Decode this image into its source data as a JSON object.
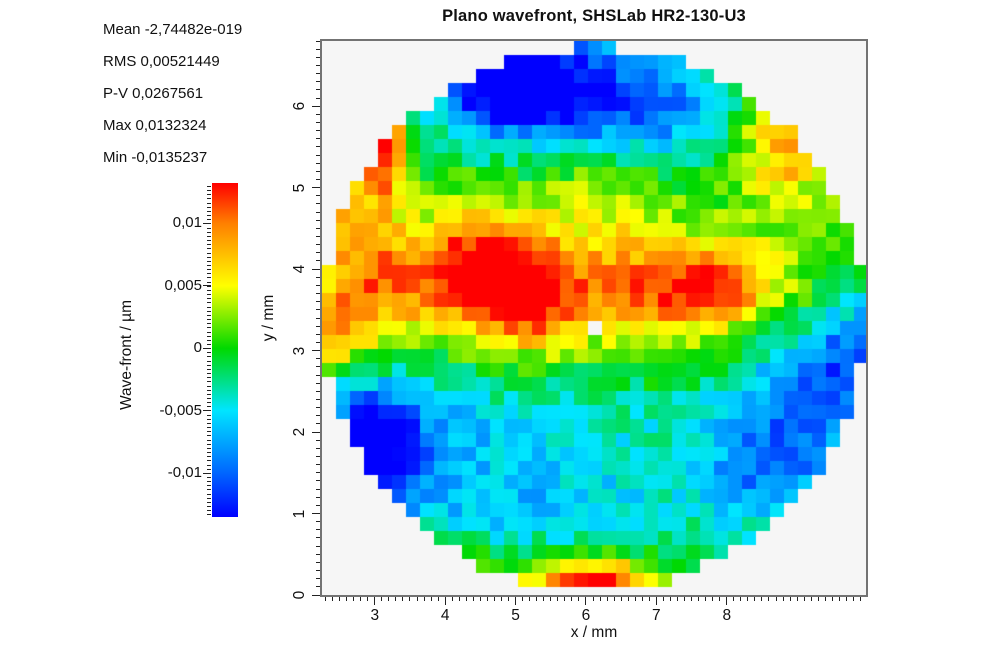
{
  "title": "Plano wavefront, SHSLab HR2-130-U3",
  "stats_panel": {
    "lines": [
      "Mean -2,74482e-019",
      "RMS 0,00521449",
      "P-V 0,0267561",
      "Max 0,0132324",
      "Min -0,0135237"
    ]
  },
  "chart_data": {
    "type": "heatmap",
    "title": "Plano wavefront, SHSLab HR2-130-U3",
    "xlabel": "x / mm",
    "ylabel": "y / mm",
    "x_range": [
      2.25,
      9.978
    ],
    "y_range": [
      0,
      6.8
    ],
    "x_tick_values": [
      3,
      4,
      5,
      6,
      7,
      8
    ],
    "x_tick_labels": [
      "3",
      "4",
      "5",
      "6",
      "7",
      "8"
    ],
    "y_tick_values": [
      0,
      1,
      2,
      3,
      4,
      5,
      6
    ],
    "y_tick_labels": [
      "0",
      "1",
      "2",
      "3",
      "4",
      "5",
      "6"
    ],
    "x_minor_step": 0.1,
    "y_minor_step": 0.1,
    "grid_on": false,
    "value_unit": "µm",
    "value_range": [
      -0.0135237,
      0.0132324
    ],
    "stats": {
      "mean": "-2,74482e-019",
      "rms": "0,00521449",
      "pv": "0,0267561",
      "max": "0,0132324",
      "min": "-0,0135237"
    },
    "colorbar": {
      "label": "Wave-front / µm",
      "tick_labels": [
        "0,01",
        "0,005",
        "0",
        "-0,005",
        "-0,01"
      ],
      "tick_values": [
        0.01,
        0.005,
        0,
        -0.005,
        -0.01
      ],
      "minor_step": 0.000333,
      "position": "left-of-plot"
    },
    "colormap_stops": [
      [
        -0.0135237,
        "#0000ff"
      ],
      [
        -0.01,
        "#0066ff"
      ],
      [
        -0.005,
        "#00e5ff"
      ],
      [
        0.0,
        "#00d900"
      ],
      [
        0.005,
        "#ffff00"
      ],
      [
        0.01,
        "#ff8000"
      ],
      [
        0.0132324,
        "#ff0000"
      ]
    ],
    "aperture": {
      "center_mm": [
        6.115,
        3.39
      ],
      "radius_x_mm": 3.86,
      "radius_y_mm": 3.33
    },
    "cell_size_mm": [
      0.199,
      0.172
    ],
    "missing_cells": [
      [
        19,
        20
      ]
    ],
    "field_blobs": [
      [
        5.2,
        6.35,
        0.75,
        0.45,
        -0.009
      ],
      [
        5.9,
        6.1,
        1.5,
        0.6,
        -0.0075
      ],
      [
        4.7,
        6.25,
        0.5,
        0.4,
        -0.006
      ],
      [
        7.0,
        5.95,
        0.7,
        0.4,
        -0.005
      ],
      [
        3.08,
        5.55,
        0.23,
        0.48,
        0.016
      ],
      [
        8.85,
        5.6,
        0.45,
        0.5,
        0.0095
      ],
      [
        2.45,
        4.7,
        0.3,
        0.4,
        0.006
      ],
      [
        3.05,
        3.85,
        0.55,
        0.5,
        0.0075
      ],
      [
        2.4,
        3.2,
        0.35,
        0.35,
        0.0065
      ],
      [
        4.5,
        4.0,
        0.5,
        0.42,
        0.009
      ],
      [
        5.2,
        3.62,
        0.45,
        0.38,
        0.009
      ],
      [
        4.85,
        3.9,
        1.0,
        0.65,
        0.0035
      ],
      [
        5.6,
        3.85,
        2.6,
        0.8,
        0.004
      ],
      [
        7.15,
        3.75,
        0.85,
        0.38,
        0.008
      ],
      [
        8.0,
        3.85,
        0.5,
        0.32,
        0.0055
      ],
      [
        6.3,
        5.0,
        0.6,
        0.4,
        0.003
      ],
      [
        5.5,
        1.95,
        1.8,
        0.75,
        -0.0045
      ],
      [
        2.92,
        1.8,
        0.45,
        0.5,
        -0.0125
      ],
      [
        3.4,
        1.95,
        0.9,
        0.7,
        -0.005
      ],
      [
        8.7,
        1.6,
        0.8,
        0.6,
        -0.0085
      ],
      [
        9.3,
        2.65,
        0.8,
        0.5,
        -0.0075
      ],
      [
        9.9,
        3.1,
        0.5,
        0.6,
        -0.006
      ],
      [
        5.4,
        1.0,
        1.5,
        0.4,
        -0.0038
      ],
      [
        5.9,
        0.05,
        0.8,
        0.28,
        0.011
      ],
      [
        6.25,
        0.1,
        0.3,
        0.2,
        0.007
      ],
      [
        4.1,
        0.15,
        0.35,
        0.25,
        0.005
      ]
    ],
    "noise_amp": 0.0021,
    "noise_seed": 7
  }
}
